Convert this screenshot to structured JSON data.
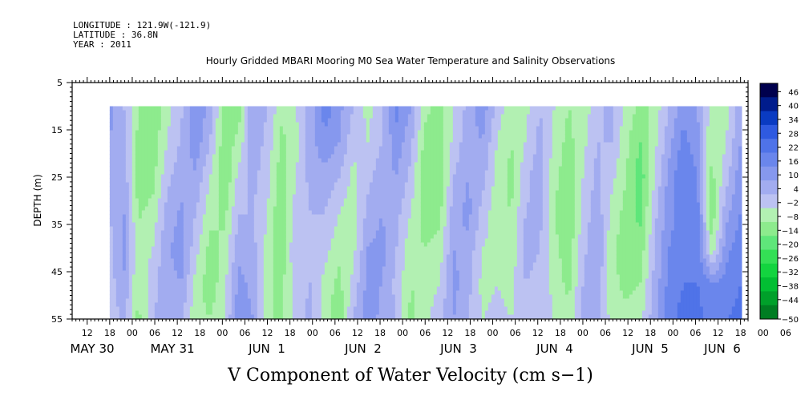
{
  "header": {
    "longitude": "LONGITUDE : 121.9W(-121.9)",
    "latitude": "LATITUDE : 36.8N",
    "year": "YEAR : 2011"
  },
  "chart_data": {
    "type": "heatmap",
    "title": "Hourly Gridded MBARI Mooring M0 Sea Water Temperature and Salinity Observations",
    "xlabel": "V Component of Water Velocity (cm s−1)",
    "ylabel": "DEPTH (m)",
    "x_range": [
      "2011-05-30T08:00",
      "2011-06-06T20:00"
    ],
    "data_range": [
      "2011-05-30T18:00",
      "2011-06-06T18:00"
    ],
    "y_range": [
      5,
      55
    ],
    "y_reversed": true,
    "data_depth_range": [
      10,
      55
    ],
    "y_ticks": [
      5,
      15,
      25,
      35,
      45,
      55
    ],
    "x_hour_labels": [
      "12",
      "18",
      "00",
      "06",
      "12",
      "18",
      "00",
      "06",
      "12",
      "18",
      "00",
      "06",
      "12",
      "18",
      "00",
      "06",
      "12",
      "18",
      "00",
      "06",
      "12",
      "18",
      "00",
      "06",
      "12",
      "18",
      "00",
      "06",
      "12",
      "18",
      "00",
      "06"
    ],
    "x_day_labels": [
      "MAY 30",
      "MAY 31",
      "JUN  1",
      "JUN  2",
      "JUN  3",
      "JUN  4",
      "JUN  5",
      "JUN  6"
    ],
    "colorbar": {
      "levels": [
        -50,
        -44,
        -38,
        -32,
        -26,
        -20,
        -14,
        -8,
        -2,
        4,
        10,
        16,
        22,
        28,
        34,
        40,
        46,
        50
      ],
      "labels": [
        "46",
        "40",
        "34",
        "28",
        "22",
        "16",
        "10",
        "4",
        "−2",
        "−8",
        "−14",
        "−20",
        "−26",
        "−32",
        "−38",
        "−44",
        "−50"
      ],
      "colors": [
        "#00004d",
        "#001c8c",
        "#0a3bc2",
        "#2f5ae0",
        "#4f73e8",
        "#6a86ec",
        "#8698ee",
        "#a2acf0",
        "#bcc2f2",
        "#b2f0b2",
        "#8deb8d",
        "#5fe67a",
        "#34df55",
        "#13d43f",
        "#02be33",
        "#00a02a",
        "#007d22"
      ]
    },
    "columns": [
      [
        12,
        10,
        7,
        4,
        2,
        1,
        0
      ],
      [
        4,
        5,
        8,
        10,
        12,
        9,
        6
      ],
      [
        -8,
        -10,
        -11,
        -9,
        -6,
        -8,
        -10
      ],
      [
        -12,
        -13,
        -10,
        -6,
        -2,
        2,
        4
      ],
      [
        -4,
        -2,
        2,
        6,
        9,
        8,
        6
      ],
      [
        3,
        5,
        8,
        11,
        13,
        10,
        4
      ],
      [
        16,
        14,
        9,
        4,
        0,
        -4,
        -6
      ],
      [
        8,
        4,
        -2,
        -6,
        -10,
        -12,
        -8
      ],
      [
        -10,
        -12,
        -14,
        -10,
        -6,
        -4,
        -2
      ],
      [
        -12,
        -6,
        0,
        4,
        8,
        12,
        14
      ],
      [
        10,
        8,
        6,
        4,
        6,
        8,
        10
      ],
      [
        4,
        2,
        0,
        -2,
        -4,
        -6,
        -8
      ],
      [
        -6,
        -10,
        -12,
        -14,
        -12,
        -10,
        -8
      ],
      [
        -2,
        -4,
        -2,
        2,
        4,
        2,
        0
      ],
      [
        6,
        8,
        6,
        4,
        2,
        4,
        6
      ],
      [
        20,
        14,
        8,
        4,
        0,
        -4,
        -6
      ],
      [
        12,
        10,
        4,
        -2,
        -6,
        -10,
        -12
      ],
      [
        4,
        0,
        -4,
        -6,
        -4,
        0,
        4
      ],
      [
        -4,
        -2,
        2,
        6,
        10,
        12,
        14
      ],
      [
        2,
        4,
        8,
        10,
        12,
        10,
        8
      ],
      [
        18,
        14,
        10,
        6,
        4,
        2,
        4
      ],
      [
        10,
        6,
        2,
        -2,
        -6,
        -8,
        -10
      ],
      [
        -6,
        -10,
        -14,
        -12,
        -8,
        -6,
        -4
      ],
      [
        -10,
        -12,
        -14,
        -10,
        -6,
        -2,
        2
      ],
      [
        -2,
        0,
        4,
        8,
        10,
        12,
        10
      ],
      [
        6,
        8,
        10,
        12,
        8,
        6,
        4
      ],
      [
        14,
        10,
        6,
        2,
        -2,
        -4,
        -2
      ],
      [
        2,
        -2,
        -4,
        -6,
        -4,
        -2,
        0
      ],
      [
        -6,
        -8,
        -10,
        -8,
        -6,
        -4,
        -2
      ],
      [
        -4,
        -2,
        2,
        4,
        6,
        4,
        2
      ],
      [
        4,
        6,
        8,
        6,
        4,
        2,
        2
      ],
      [
        -2,
        -4,
        -6,
        -8,
        -6,
        -4,
        -2
      ],
      [
        -8,
        -10,
        -12,
        -14,
        -12,
        -10,
        -6
      ],
      [
        -6,
        -4,
        -2,
        0,
        2,
        4,
        6
      ],
      [
        2,
        4,
        6,
        8,
        10,
        8,
        6
      ],
      [
        6,
        4,
        0,
        -4,
        -6,
        -6,
        -4
      ],
      [
        -4,
        -6,
        -8,
        -10,
        -12,
        -10,
        -6
      ],
      [
        -10,
        -14,
        -18,
        -16,
        -12,
        -8,
        -4
      ],
      [
        -6,
        -4,
        -2,
        2,
        4,
        6,
        8
      ],
      [
        4,
        8,
        12,
        14,
        16,
        18,
        20
      ],
      [
        14,
        18,
        22,
        20,
        18,
        22,
        24
      ],
      [
        10,
        12,
        16,
        18,
        20,
        22,
        24
      ],
      [
        -6,
        -8,
        -10,
        -12,
        -8,
        16,
        20
      ],
      [
        -4,
        -2,
        2,
        8,
        14,
        18,
        22
      ],
      [
        8,
        10,
        14,
        16,
        20,
        22,
        24
      ]
    ]
  }
}
